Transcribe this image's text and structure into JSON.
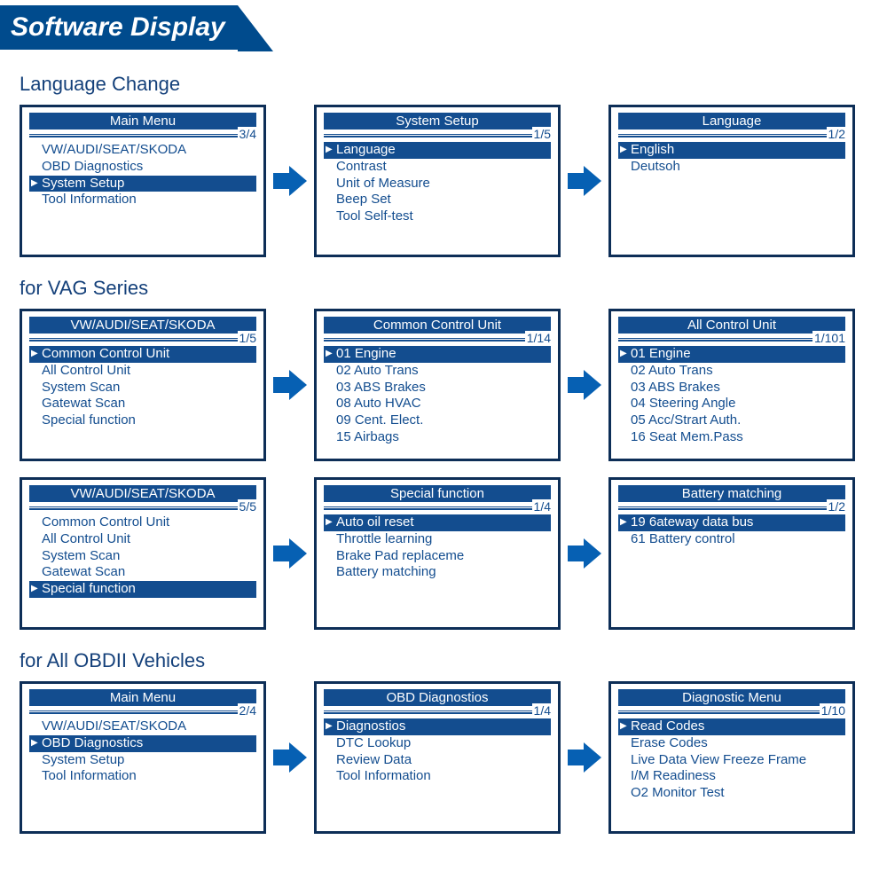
{
  "colors": {
    "banner_bg": "#004b8d",
    "screen_border": "#0d2e57",
    "primary": "#134d8f",
    "section_title": "#14407a",
    "arrow": "#0660b3",
    "white": "#ffffff"
  },
  "banner": {
    "title": "Software Display"
  },
  "sections": [
    {
      "title": "Language Change",
      "rows": [
        [
          {
            "header": "Main Menu",
            "counter": "3/4",
            "items": [
              "VW/AUDI/SEAT/SKODA",
              "OBD Diagnostics",
              "System Setup",
              "Tool Information"
            ],
            "selected": 2
          },
          {
            "header": "System Setup",
            "counter": "1/5",
            "items": [
              "Language",
              "Contrast",
              "Unit of Measure",
              "Beep Set",
              "Tool  Self-test"
            ],
            "selected": 0
          },
          {
            "header": "Language",
            "counter": "1/2",
            "items": [
              "English",
              "Deutsoh"
            ],
            "selected": 0
          }
        ]
      ]
    },
    {
      "title": "for VAG Series",
      "rows": [
        [
          {
            "header": "VW/AUDI/SEAT/SKODA",
            "counter": "1/5",
            "items": [
              "Common  Control  Unit",
              "All  Control Unit",
              "System Scan",
              "Gatewat Scan",
              "Special  function"
            ],
            "selected": 0
          },
          {
            "header": "Common Control Unit",
            "counter": "1/14",
            "items": [
              "01 Engine",
              "02 Auto Trans",
              "03 ABS Brakes",
              "08 Auto HVAC",
              "09 Cent. Elect.",
              "15 Airbags"
            ],
            "selected": 0
          },
          {
            "header": "All Control Unit",
            "counter": "1/101",
            "items": [
              "01 Engine",
              "02 Auto Trans",
              "03 ABS Brakes",
              "04 Steering Angle",
              "05 Acc/Strart Auth.",
              "16 Seat Mem.Pass"
            ],
            "selected": 0
          }
        ],
        [
          {
            "header": "VW/AUDI/SEAT/SKODA",
            "counter": "5/5",
            "items": [
              "Common  Control  Unit",
              "All  Control Unit",
              "System Scan",
              "Gatewat Scan",
              "Special  function"
            ],
            "selected": 4
          },
          {
            "header": "Special function",
            "counter": "1/4",
            "items": [
              "Auto oil reset",
              "Throttle learning",
              "Brake Pad replaceme",
              "Battery matching"
            ],
            "selected": 0
          },
          {
            "header": "Battery matching",
            "counter": "1/2",
            "items": [
              "19 6ateway data bus",
              "61 Battery control"
            ],
            "selected": 0
          }
        ]
      ]
    },
    {
      "title": "for All OBDII Vehicles",
      "rows": [
        [
          {
            "header": "Main Menu",
            "counter": "2/4",
            "items": [
              "VW/AUDI/SEAT/SKODA",
              "OBD  Diagnostics",
              "System Setup",
              "Tool Information"
            ],
            "selected": 1
          },
          {
            "header": "OBD Diagnostios",
            "counter": "1/4",
            "items": [
              "Diagnostios",
              "DTC Lookup",
              "Review Data",
              "Tool Information"
            ],
            "selected": 0
          },
          {
            "header": "Diagnostic Menu",
            "counter": "1/10",
            "items": [
              "Read Codes",
              "Erase Codes",
              "Live Data View Freeze Frame",
              "I/M Readiness",
              "O2 Monitor Test"
            ],
            "selected": 0
          }
        ]
      ]
    }
  ]
}
